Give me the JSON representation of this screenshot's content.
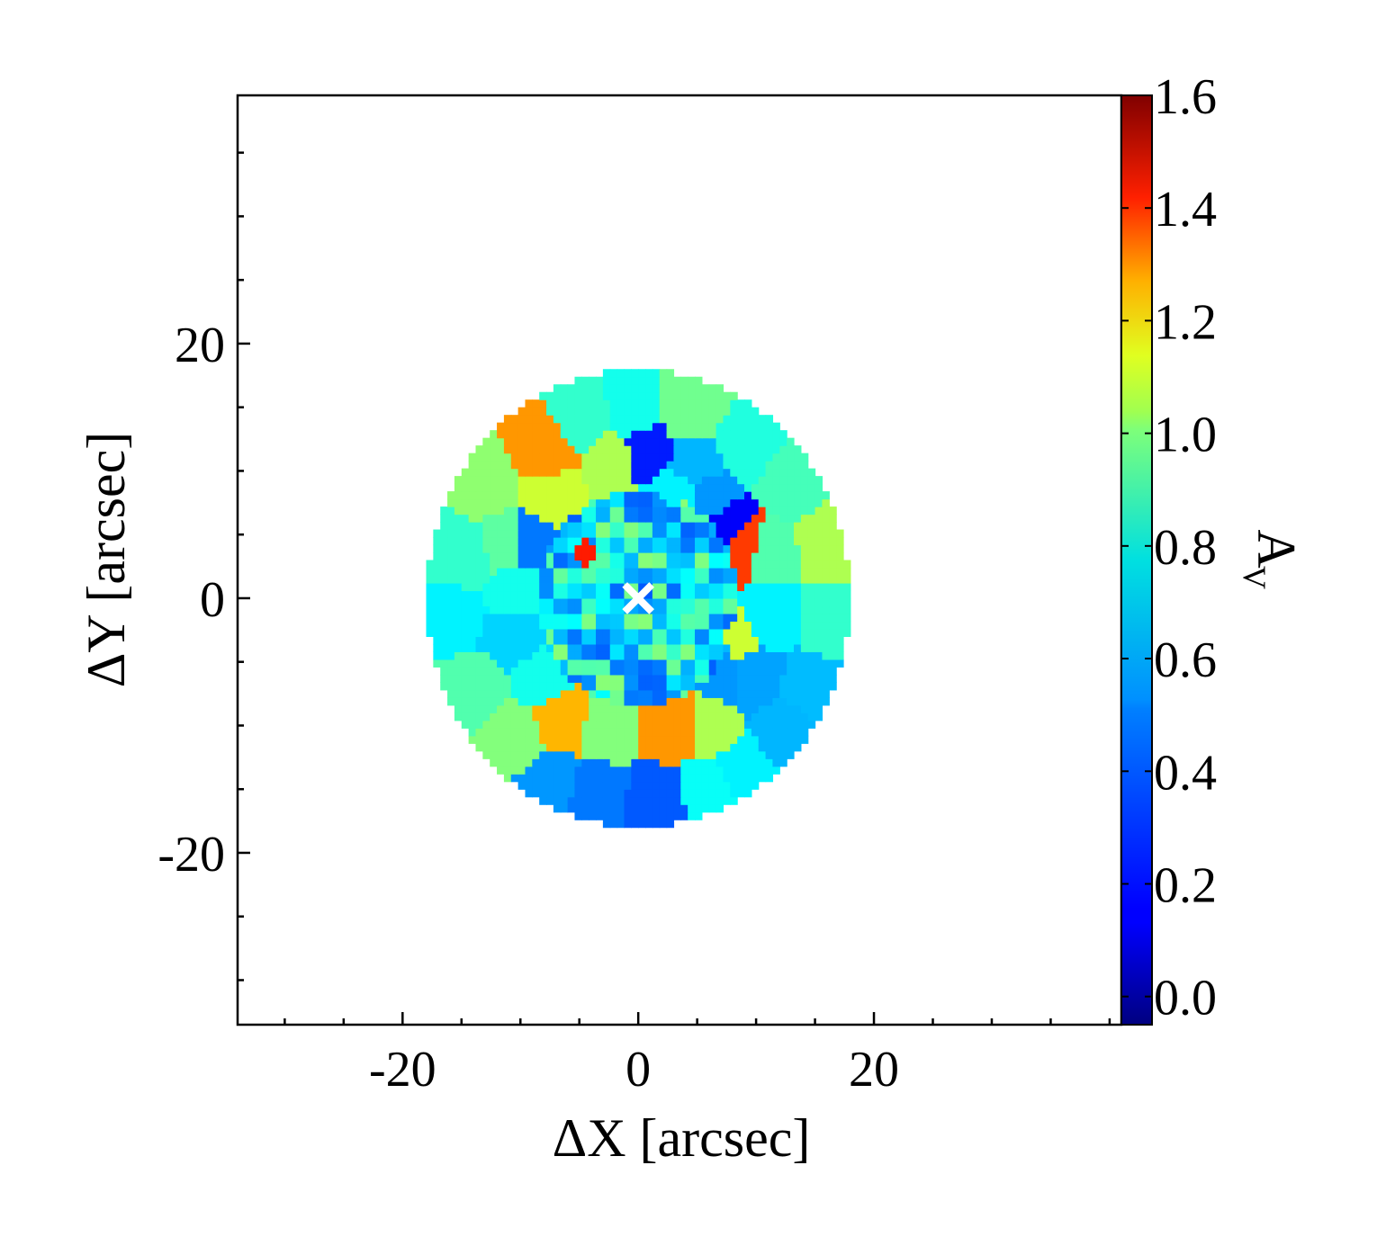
{
  "chart_data": {
    "type": "heatmap",
    "title": "",
    "xlabel": "ΔX [arcsec]",
    "ylabel": "ΔY [arcsec]",
    "colorbar_label_main": "A",
    "colorbar_label_sub": "V",
    "xlim": [
      -34,
      41
    ],
    "ylim": [
      -33.5,
      39.5
    ],
    "x_ticks": [
      -20,
      0,
      20
    ],
    "x_tick_labels": [
      "-20",
      "0",
      "20"
    ],
    "y_ticks": [
      20,
      0,
      -20
    ],
    "y_tick_labels": [
      "20",
      "0",
      "-20"
    ],
    "colorbar": {
      "range": [
        -0.05,
        1.6
      ],
      "ticks": [
        0.0,
        0.2,
        0.4,
        0.6,
        0.8,
        1.0,
        1.2,
        1.4,
        1.6
      ],
      "tick_labels": [
        "0.0",
        "0.2",
        "0.4",
        "0.6",
        "0.8",
        "1.0",
        "1.2",
        "1.4",
        "1.6"
      ],
      "colormap": "jet"
    },
    "map": {
      "center": [
        0,
        0
      ],
      "radius": 18,
      "pixel_size": 0.6,
      "mean_value": 0.55,
      "seeds": [
        {
          "x": -8,
          "y": 11.5,
          "v": 1.15
        },
        {
          "x": -13,
          "y": 9,
          "v": 0.8
        },
        {
          "x": -15,
          "y": 3.5,
          "v": 0.65
        },
        {
          "x": -16,
          "y": -1.5,
          "v": 0.55
        },
        {
          "x": -14,
          "y": -7,
          "v": 0.7
        },
        {
          "x": -10.5,
          "y": -11,
          "v": 0.78
        },
        {
          "x": -7.5,
          "y": -14.5,
          "v": 0.4
        },
        {
          "x": -3.5,
          "y": -15.5,
          "v": 0.35
        },
        {
          "x": 1.5,
          "y": -16,
          "v": 0.3
        },
        {
          "x": 6,
          "y": -15,
          "v": 0.58
        },
        {
          "x": 9,
          "y": -13.5,
          "v": 0.55
        },
        {
          "x": 12.5,
          "y": -10.5,
          "v": 0.45
        },
        {
          "x": 15,
          "y": -7,
          "v": 0.46
        },
        {
          "x": 16.5,
          "y": -2,
          "v": 0.65
        },
        {
          "x": 16,
          "y": 4.5,
          "v": 0.85
        },
        {
          "x": 13,
          "y": 9,
          "v": 0.68
        },
        {
          "x": 9,
          "y": 12,
          "v": 0.62
        },
        {
          "x": 4.5,
          "y": 14.5,
          "v": 0.75
        },
        {
          "x": -0.5,
          "y": 14.5,
          "v": 0.6
        },
        {
          "x": -4.5,
          "y": 14,
          "v": 0.65
        },
        {
          "x": 0.5,
          "y": 11.5,
          "v": 0.2
        },
        {
          "x": 5,
          "y": 10.5,
          "v": 0.45
        },
        {
          "x": -2,
          "y": 11,
          "v": 0.85
        },
        {
          "x": -7.5,
          "y": 8,
          "v": 0.9
        },
        {
          "x": -11,
          "y": 4.5,
          "v": 0.72
        },
        {
          "x": -10,
          "y": 0.5,
          "v": 0.6
        },
        {
          "x": -10.5,
          "y": -3,
          "v": 0.5
        },
        {
          "x": -8,
          "y": -6,
          "v": 0.6
        },
        {
          "x": -6.5,
          "y": -9.5,
          "v": 1.1
        },
        {
          "x": -2.5,
          "y": -10,
          "v": 0.78
        },
        {
          "x": 3,
          "y": -10,
          "v": 1.15
        },
        {
          "x": 6,
          "y": -10,
          "v": 0.85
        },
        {
          "x": 9.5,
          "y": -6,
          "v": 0.42
        },
        {
          "x": 11,
          "y": -1.5,
          "v": 0.55
        },
        {
          "x": 11,
          "y": 3.5,
          "v": 0.7
        },
        {
          "x": 9,
          "y": 4,
          "v": 1.3
        },
        {
          "x": 7.5,
          "y": 5.5,
          "v": 0.15
        },
        {
          "x": 6,
          "y": 8,
          "v": 0.4
        },
        {
          "x": 3,
          "y": 8,
          "v": 0.55
        },
        {
          "x": -9,
          "y": 4.5,
          "v": 0.35
        },
        {
          "x": 8,
          "y": -3,
          "v": 0.9
        },
        {
          "x": 7.5,
          "y": -6,
          "v": 0.4
        },
        {
          "x": -4.5,
          "y": 3.5,
          "v": 1.35
        }
      ]
    },
    "center_marker": {
      "x": 0,
      "y": 0,
      "symbol": "x",
      "color": "#ffffff"
    }
  }
}
